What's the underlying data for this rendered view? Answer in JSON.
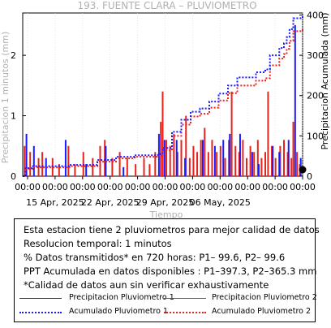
{
  "chart_data": {
    "type": "bar+line",
    "title": "193. FUENTE CLARA – PLUVIOMETRO",
    "xlabel": "Tiempo",
    "ylabel_left": "Precipitacion 1 minutos (mm)",
    "ylabel_right": "Precipitacion Acumulada (mm)",
    "y_left_ticks": [
      "0",
      "1",
      "2"
    ],
    "y_left_lim": [
      0,
      2.7
    ],
    "y_right_ticks": [
      "0",
      "100",
      "200",
      "300",
      "400"
    ],
    "y_right_lim": [
      0,
      405
    ],
    "x_time_ticks": [
      "00:00",
      "00:00",
      "00:00",
      "00:00",
      "00:00",
      "00:00",
      "00:00",
      "00:00",
      "00:00",
      "00:00",
      "00:00"
    ],
    "x_date_ticks": [
      "15 Apr, 2025",
      "22 Apr, 2025",
      "29 Apr, 2025",
      "06 May, 2025"
    ],
    "x_range_days": [
      0,
      30
    ],
    "cumulative_p1": [
      [
        0,
        0
      ],
      [
        0.3,
        20
      ],
      [
        1,
        25
      ],
      [
        5,
        28
      ],
      [
        8,
        40
      ],
      [
        10,
        48
      ],
      [
        12,
        52
      ],
      [
        14.5,
        55
      ],
      [
        15,
        70
      ],
      [
        16,
        110
      ],
      [
        17,
        140
      ],
      [
        18,
        160
      ],
      [
        19,
        168
      ],
      [
        20,
        185
      ],
      [
        21,
        205
      ],
      [
        22,
        225
      ],
      [
        23,
        245
      ],
      [
        25,
        258
      ],
      [
        26,
        265
      ],
      [
        26.5,
        300
      ],
      [
        27.5,
        318
      ],
      [
        28,
        330
      ],
      [
        28.3,
        345
      ],
      [
        28.6,
        365
      ],
      [
        29,
        392
      ],
      [
        30,
        397.3
      ]
    ],
    "cumulative_p2": [
      [
        0,
        0
      ],
      [
        0.3,
        18
      ],
      [
        1,
        22
      ],
      [
        5,
        25
      ],
      [
        8,
        36
      ],
      [
        10,
        44
      ],
      [
        12,
        48
      ],
      [
        14.5,
        51
      ],
      [
        15,
        64
      ],
      [
        16,
        100
      ],
      [
        17,
        128
      ],
      [
        18,
        148
      ],
      [
        19,
        155
      ],
      [
        20,
        170
      ],
      [
        21,
        188
      ],
      [
        22,
        206
      ],
      [
        23,
        225
      ],
      [
        25,
        237
      ],
      [
        26,
        243
      ],
      [
        26.5,
        275
      ],
      [
        27.5,
        292
      ],
      [
        28,
        303
      ],
      [
        28.3,
        316
      ],
      [
        28.6,
        336
      ],
      [
        29,
        360
      ],
      [
        30,
        365.3
      ]
    ],
    "bars_p1": [
      [
        0.4,
        0.7
      ],
      [
        1.2,
        0.5
      ],
      [
        2.5,
        0.3
      ],
      [
        4.6,
        0.6
      ],
      [
        6.8,
        0.2
      ],
      [
        8.9,
        0.5
      ],
      [
        10.8,
        0.15
      ],
      [
        14.6,
        0.7
      ],
      [
        15.2,
        0.6
      ],
      [
        16.5,
        0.6
      ],
      [
        17.4,
        0.3
      ],
      [
        19.3,
        0.6
      ],
      [
        20.6,
        0.5
      ],
      [
        21.5,
        0.6
      ],
      [
        22.2,
        0.7
      ],
      [
        23.3,
        0.7
      ],
      [
        24.6,
        0.4
      ],
      [
        25.3,
        0.2
      ],
      [
        26.8,
        0.5
      ],
      [
        27.5,
        0.4
      ],
      [
        28.5,
        0.6
      ],
      [
        29.2,
        2.5
      ],
      [
        29.8,
        0.3
      ]
    ],
    "bars_p2": [
      [
        0.2,
        0.5
      ],
      [
        0.8,
        0.4
      ],
      [
        1.7,
        0.3
      ],
      [
        2.1,
        0.4
      ],
      [
        3.2,
        0.3
      ],
      [
        3.9,
        0.2
      ],
      [
        4.9,
        0.5
      ],
      [
        5.6,
        0.2
      ],
      [
        6.5,
        0.4
      ],
      [
        7.5,
        0.3
      ],
      [
        8.3,
        0.5
      ],
      [
        8.8,
        0.6
      ],
      [
        9.6,
        0.3
      ],
      [
        10.4,
        0.4
      ],
      [
        11.2,
        0.3
      ],
      [
        12.1,
        0.2
      ],
      [
        13.0,
        0.3
      ],
      [
        13.6,
        0.2
      ],
      [
        14.2,
        0.4
      ],
      [
        14.8,
        0.9
      ],
      [
        15.0,
        1.4
      ],
      [
        15.4,
        0.6
      ],
      [
        15.8,
        0.5
      ],
      [
        16.2,
        0.7
      ],
      [
        16.6,
        0.4
      ],
      [
        17.0,
        0.6
      ],
      [
        17.5,
        1.0
      ],
      [
        17.9,
        0.3
      ],
      [
        18.3,
        0.5
      ],
      [
        18.7,
        0.4
      ],
      [
        19.1,
        0.6
      ],
      [
        19.5,
        0.8
      ],
      [
        19.9,
        0.4
      ],
      [
        20.3,
        0.6
      ],
      [
        20.8,
        0.4
      ],
      [
        21.2,
        0.5
      ],
      [
        21.7,
        0.3
      ],
      [
        22.1,
        0.6
      ],
      [
        22.4,
        1.4
      ],
      [
        22.8,
        0.5
      ],
      [
        23.2,
        0.4
      ],
      [
        23.6,
        0.6
      ],
      [
        24.0,
        0.3
      ],
      [
        24.4,
        0.5
      ],
      [
        24.8,
        0.4
      ],
      [
        25.2,
        0.6
      ],
      [
        25.6,
        0.3
      ],
      [
        26.0,
        0.4
      ],
      [
        26.3,
        1.4
      ],
      [
        26.7,
        0.5
      ],
      [
        27.1,
        0.3
      ],
      [
        27.6,
        0.5
      ],
      [
        28.0,
        0.6
      ],
      [
        28.4,
        0.4
      ],
      [
        28.8,
        0.3
      ],
      [
        29.0,
        0.9
      ],
      [
        29.4,
        0.4
      ],
      [
        29.7,
        0.2
      ]
    ],
    "colors": {
      "p1": "#1a1aff",
      "p2": "#e8231c"
    }
  },
  "notes": {
    "line1": "Esta estacion tiene 2 pluviometros para mejor calidad de datos",
    "line2": "Resolucion temporal: 1 minutos",
    "line3": "% Datos transmitidos* en 720 horas: P1– 99.6, P2– 99.6",
    "line4": "PPT Acumulada en datos disponibles : P1–397.3, P2–365.3 mm",
    "line5": "*Calidad de datos aun sin verificar exhaustivamente"
  },
  "legend": {
    "p1_rain": "Precipitacion Pluviometro 1",
    "p2_rain": "Precipitacion Pluviometro 2",
    "p1_acc": "Acumulado Pluviometro 1",
    "p2_acc": "Acumulado Pluviometro 2"
  }
}
